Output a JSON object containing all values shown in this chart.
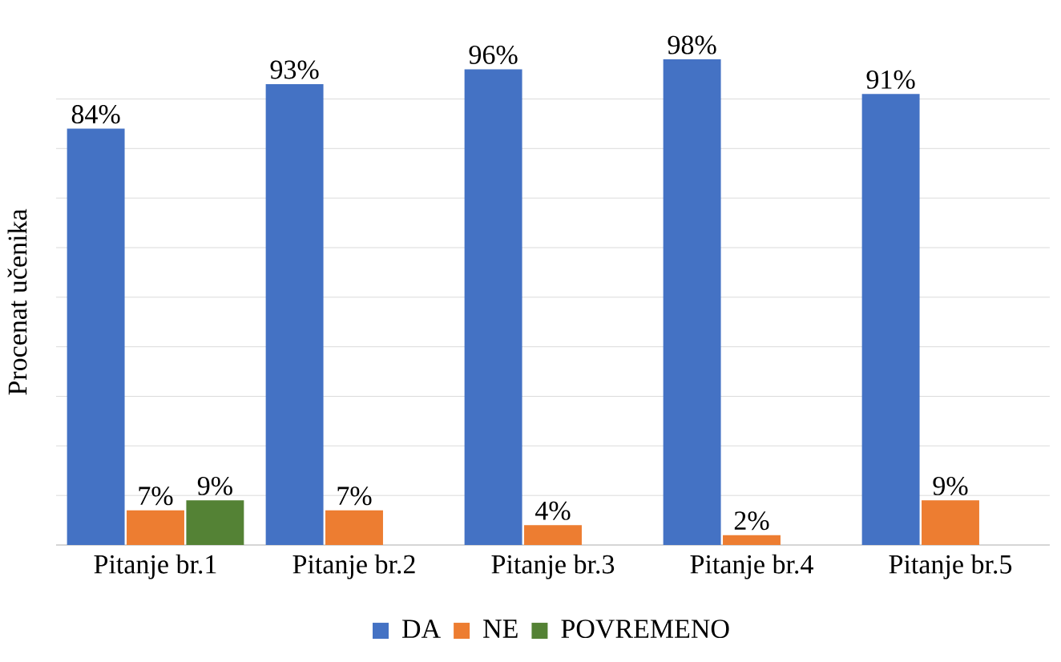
{
  "chart_data": {
    "type": "bar",
    "ylabel": "Procenat učenika",
    "categories": [
      "Pitanje br.1",
      "Pitanje br.2",
      "Pitanje br.3",
      "Pitanje br.4",
      "Pitanje br.5"
    ],
    "series": [
      {
        "name": "DA",
        "color": "#4472c4",
        "values": [
          84,
          93,
          96,
          98,
          91
        ],
        "value_labels": [
          "84%",
          "93%",
          "96%",
          "98%",
          "91%"
        ]
      },
      {
        "name": "NE",
        "color": "#ed7d31",
        "values": [
          7,
          7,
          4,
          2,
          9
        ],
        "value_labels": [
          "7%",
          "7%",
          "4%",
          "2%",
          "9%"
        ]
      },
      {
        "name": "POVREMENO",
        "color": "#548235",
        "values": [
          9,
          null,
          null,
          null,
          null
        ],
        "value_labels": [
          "9%",
          null,
          null,
          null,
          null
        ]
      }
    ],
    "tick_labels": "x",
    "grid": "y",
    "legend": "bottom"
  }
}
